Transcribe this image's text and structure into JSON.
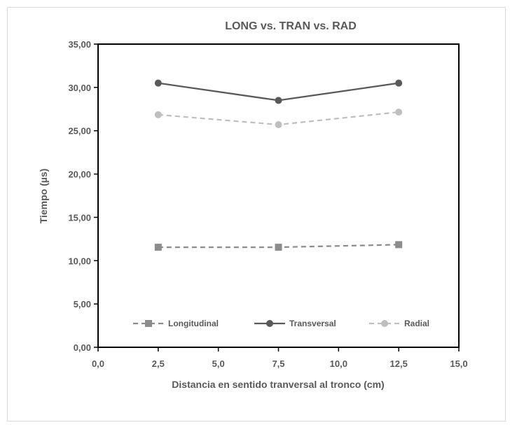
{
  "chart_data": {
    "type": "line",
    "title": "LONG vs. TRAN vs. RAD",
    "xlabel": "Distancia en sentido tranversal al tronco (cm)",
    "ylabel": "Tiempo (µs)",
    "xlim": [
      0,
      15
    ],
    "ylim": [
      0,
      35
    ],
    "x_ticks": [
      "0,0",
      "2,5",
      "5,0",
      "7,5",
      "10,0",
      "12,5",
      "15,0"
    ],
    "y_ticks": [
      "0,00",
      "5,00",
      "10,00",
      "15,00",
      "20,00",
      "25,00",
      "30,00",
      "35,00"
    ],
    "x": [
      2.5,
      7.5,
      12.5
    ],
    "series": [
      {
        "name": "Longitudinal",
        "values": [
          11.55,
          11.55,
          11.85
        ],
        "color": "#8c8c8c",
        "dash": "dashed",
        "marker": "square"
      },
      {
        "name": "Transversal",
        "values": [
          30.5,
          28.5,
          30.5
        ],
        "color": "#595959",
        "dash": "solid",
        "marker": "circle"
      },
      {
        "name": "Radial",
        "values": [
          26.85,
          25.7,
          27.15
        ],
        "color": "#bfbfbf",
        "dash": "dashed",
        "marker": "circle"
      }
    ],
    "legend_position": "bottom-inside",
    "grid": false
  }
}
